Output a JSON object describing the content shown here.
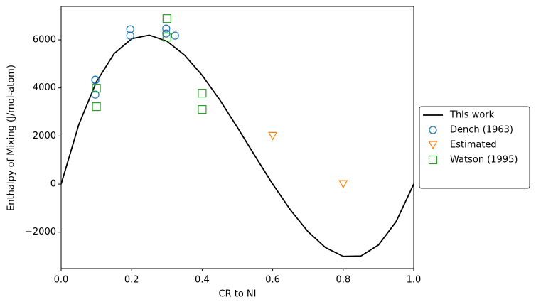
{
  "chart_data": {
    "type": "scatter",
    "xlabel": "CR to NI",
    "ylabel": "Enthalpy of Mixing (J/mol-atom)",
    "xlim": [
      0,
      1
    ],
    "ylim": [
      -3515,
      7390
    ],
    "xticks": [
      {
        "value": 0,
        "label": "0.0"
      },
      {
        "value": 0.2,
        "label": "0.2"
      },
      {
        "value": 0.4,
        "label": "0.4"
      },
      {
        "value": 0.6,
        "label": "0.6"
      },
      {
        "value": 0.8,
        "label": "0.8"
      },
      {
        "value": 1,
        "label": "1.0"
      }
    ],
    "yticks": [
      {
        "value": -2000,
        "label": "−2000"
      },
      0,
      2000,
      4000,
      6000
    ],
    "grid": false,
    "legend_loc": "right outside",
    "series": [
      {
        "name": "This work",
        "kind": "line",
        "color": "#000000",
        "x": [
          0,
          0.05,
          0.1,
          0.15,
          0.2,
          0.25,
          0.3,
          0.35,
          0.4,
          0.45,
          0.5,
          0.55,
          0.6,
          0.65,
          0.7,
          0.75,
          0.8,
          0.85,
          0.9,
          0.95,
          1
        ],
        "values": [
          0,
          2471,
          4254,
          5422,
          6045,
          6196,
          5945,
          5365,
          4525,
          3499,
          2355,
          1165,
          0,
          -1070,
          -1975,
          -2643,
          -3006,
          -2993,
          -2534,
          -1560,
          0
        ]
      },
      {
        "name": "Dench (1963)",
        "kind": "circle",
        "color": "#1f77b4",
        "x": [
          0.097,
          0.097,
          0.097,
          0.196,
          0.196,
          0.298,
          0.298,
          0.323
        ],
        "values": [
          4343,
          4320,
          3722,
          6440,
          6174,
          6470,
          6263,
          6174
        ]
      },
      {
        "name": "Estimated",
        "kind": "triangle",
        "color": "#ff7f0e",
        "x": [
          0.6,
          0.8
        ],
        "values": [
          2000,
          0
        ]
      },
      {
        "name": "Watson (1995)",
        "kind": "square",
        "color": "#2ca02c",
        "x": [
          0.1,
          0.1,
          0.3,
          0.3,
          0.4,
          0.4
        ],
        "values": [
          3988,
          3220,
          6883,
          6115,
          3781,
          3102
        ]
      }
    ]
  }
}
